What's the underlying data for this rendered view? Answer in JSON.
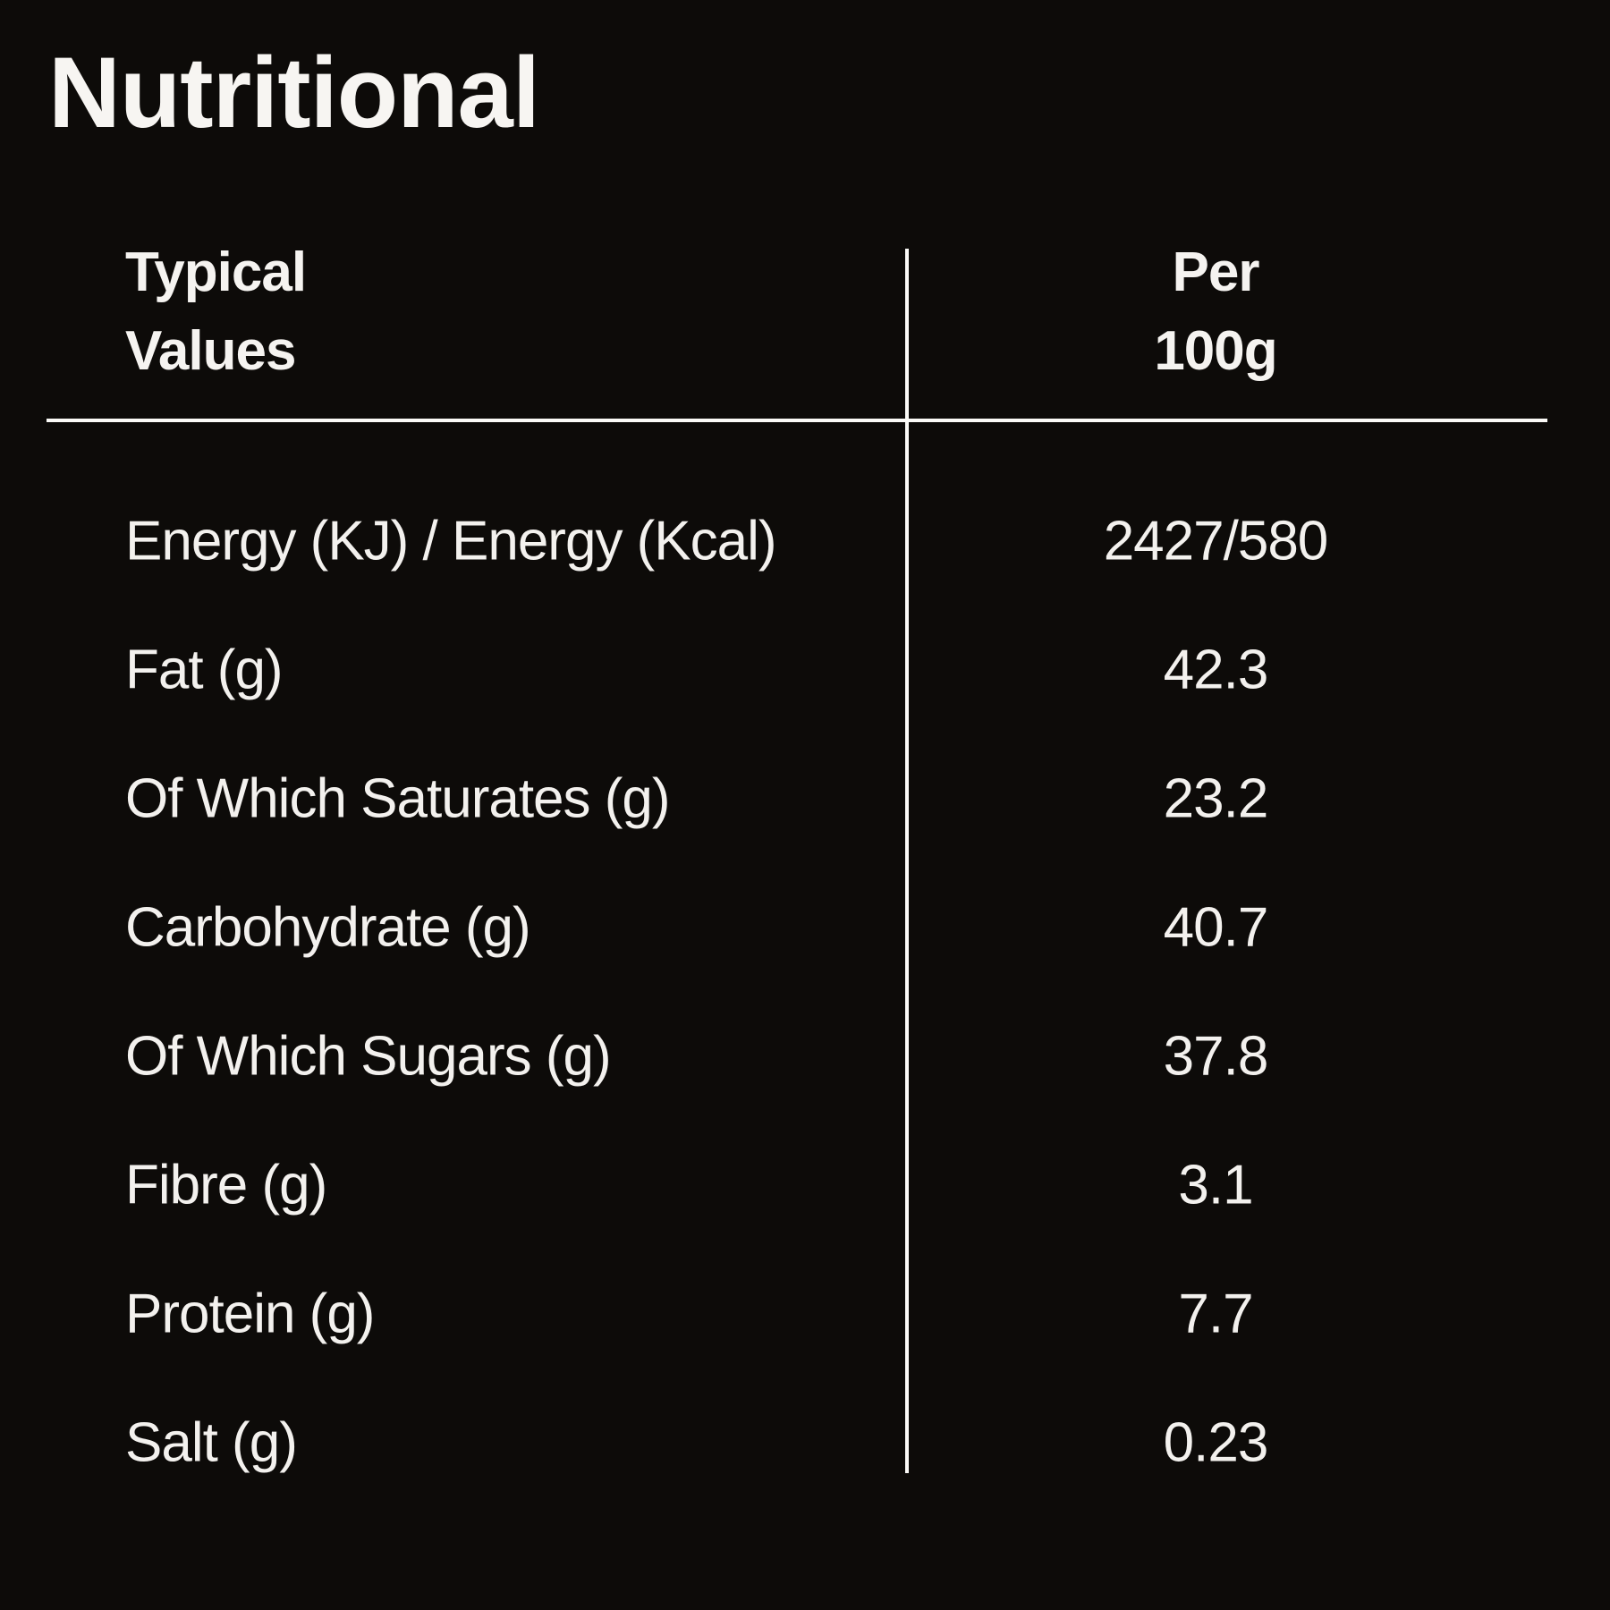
{
  "title": "Nutritional",
  "table": {
    "header": {
      "col1_line1": "Typical",
      "col1_line2": "Values",
      "col2_line1": "Per",
      "col2_line2": "100g"
    },
    "rows": [
      {
        "label": "Energy (KJ) / Energy (Kcal)",
        "value": "2427/580"
      },
      {
        "label": "Fat (g)",
        "value": "42.3"
      },
      {
        "label": "Of Which Saturates (g)",
        "value": "23.2"
      },
      {
        "label": "Carbohydrate (g)",
        "value": "40.7"
      },
      {
        "label": "Of Which Sugars (g)",
        "value": "37.8"
      },
      {
        "label": "Fibre (g)",
        "value": "3.1"
      },
      {
        "label": "Protein (g)",
        "value": "7.7"
      },
      {
        "label": "Salt (g)",
        "value": "0.23"
      }
    ]
  },
  "colors": {
    "background": "#0d0b09",
    "text": "#f3f1ee",
    "line": "#fbfaf7"
  }
}
